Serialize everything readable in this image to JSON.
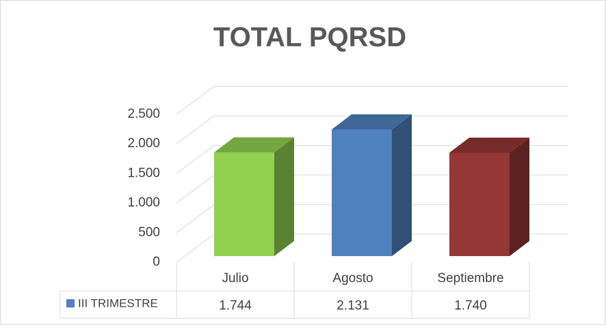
{
  "chart_data": {
    "type": "bar3d",
    "title": "TOTAL PQRSD",
    "categories": [
      "Julio",
      "Agosto",
      "Septiembre"
    ],
    "series": [
      {
        "name": "III TRIMESTRE",
        "color": "#4f81bd",
        "values": [
          1744,
          2131,
          1740
        ],
        "value_labels": [
          "1.744",
          "2.131",
          "1.740"
        ]
      }
    ],
    "colors": [
      "#92d050",
      "#4f81bd",
      "#953735"
    ],
    "ylim": [
      0,
      2500
    ],
    "yticks": [
      0,
      500,
      {
        "value": 1000,
        "label": "1.000"
      },
      {
        "value": 1500,
        "label": "1.500"
      },
      {
        "value": 2000,
        "label": "2.000"
      },
      {
        "value": 2500,
        "label": "2.500"
      }
    ],
    "grid": true,
    "data_table": true
  }
}
